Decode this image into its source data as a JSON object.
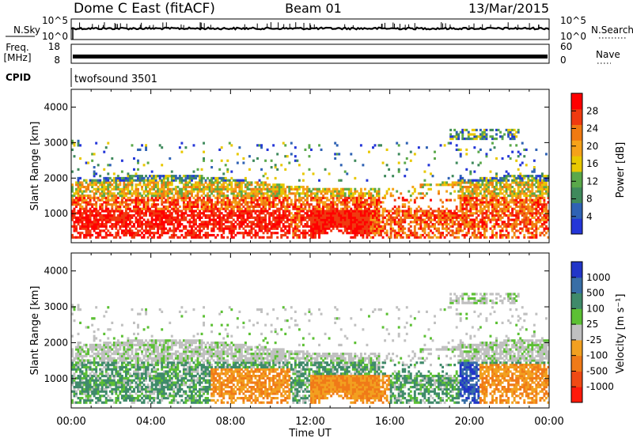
{
  "header": {
    "title": "Dome C East (fitACF)",
    "beam": "Beam 01",
    "date": "13/Mar/2015"
  },
  "colors": {
    "power": [
      "#2436d8",
      "#2f62b4",
      "#3f8a5c",
      "#5aa84a",
      "#e8c800",
      "#f5a21a",
      "#f07a12",
      "#f03a10",
      "#ff0000"
    ],
    "velocity": [
      "#2236c8",
      "#386ea6",
      "#3f8a6a",
      "#5cc034",
      "#c0c0c0",
      "#f2a020",
      "#f07a18",
      "#f04a14",
      "#ff1a0a"
    ]
  },
  "chart_data": [
    {
      "type": "line",
      "panel": "noise",
      "ylabel_left": "N.Sky",
      "ylabel_right": "N.Search",
      "ticks_left": [
        "10^5",
        "10^0"
      ],
      "ticks_right": [
        "10^5",
        "10^0"
      ],
      "xlim": [
        0,
        24
      ]
    },
    {
      "type": "line",
      "panel": "frequency",
      "ylabel_left": "Freq.\n[MHz]",
      "ylabel_right": "Nave",
      "ticks_left": [
        "18",
        "8"
      ],
      "ticks_right": [
        "60",
        "0"
      ],
      "series": [
        {
          "name": "Freq.",
          "values": [
            11,
            11
          ]
        }
      ]
    },
    {
      "type": "table",
      "panel": "cpid",
      "label": "CPID",
      "program": "twofsound 3501"
    },
    {
      "type": "heatmap",
      "panel": "power",
      "ylabel": "Slant Range [km]",
      "colorbar_label": "Power [dB]",
      "colorbar_ticks": [
        "28",
        "24",
        "20",
        "16",
        "12",
        "8",
        "4"
      ],
      "colorbar_values": [
        28,
        24,
        20,
        16,
        12,
        8,
        4
      ],
      "ylim": [
        180,
        4500
      ],
      "yticks": [
        1000,
        2000,
        3000,
        4000
      ],
      "ytick_labels": [
        "1000",
        "2000",
        "3000",
        "4000"
      ]
    },
    {
      "type": "heatmap",
      "panel": "velocity",
      "ylabel": "Slant Range [km]",
      "colorbar_label": "Velocity [m s⁻¹]",
      "colorbar_ticks": [
        "1000",
        "500",
        "100",
        "25",
        "-25",
        "-100",
        "-500",
        "-1000"
      ],
      "colorbar_values": [
        1000,
        500,
        100,
        25,
        -25,
        -100,
        -500,
        -1000
      ],
      "ylim": [
        180,
        4500
      ],
      "yticks": [
        1000,
        2000,
        3000,
        4000
      ],
      "ytick_labels": [
        "1000",
        "2000",
        "3000",
        "4000"
      ],
      "xlabel": "Time UT",
      "xticks": [
        0,
        4,
        8,
        12,
        16,
        20,
        24
      ],
      "xtick_labels": [
        "00:00",
        "04:00",
        "08:00",
        "12:00",
        "16:00",
        "20:00",
        "00:00"
      ],
      "xlim": [
        0,
        24
      ]
    }
  ]
}
